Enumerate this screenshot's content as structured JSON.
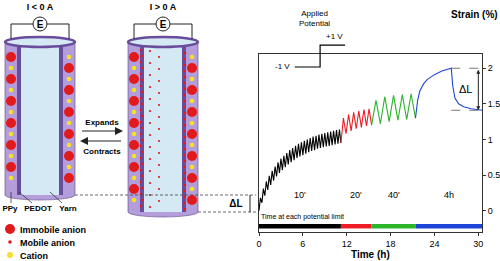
{
  "chart_data": {
    "type": "line",
    "x_label": "Time (h)",
    "y_label": "Strain (%)",
    "xlim": [
      0,
      30.5
    ],
    "xticks": [
      0,
      6,
      12,
      18,
      24,
      30
    ],
    "ylim": [
      -0.3,
      2.2
    ],
    "yticks": [
      0,
      0.5,
      1,
      1.5,
      2
    ],
    "grid": false,
    "series": [
      {
        "name": "10'",
        "color": "#000000",
        "x": [
          0,
          0.2,
          0.4,
          0.6,
          0.8,
          1,
          1.2,
          1.4,
          1.6,
          1.8,
          2,
          2.2,
          2.4,
          2.6,
          2.8,
          3,
          3.2,
          3.4,
          3.6,
          3.8,
          4,
          4.2,
          4.4,
          4.6,
          4.8,
          5,
          5.2,
          5.4,
          5.6,
          5.8,
          6,
          6.2,
          6.4,
          6.6,
          6.8,
          7,
          7.2,
          7.4,
          7.6,
          7.8,
          8,
          8.2,
          8.4,
          8.6,
          8.8,
          9,
          9.2,
          9.4,
          9.6,
          9.8,
          10,
          10.2,
          10.4,
          10.6,
          10.8,
          11,
          11.2
        ],
        "values": [
          0,
          0.18,
          0.11,
          0.31,
          0.21,
          0.41,
          0.29,
          0.49,
          0.36,
          0.56,
          0.42,
          0.62,
          0.48,
          0.68,
          0.53,
          0.73,
          0.57,
          0.77,
          0.61,
          0.81,
          0.65,
          0.85,
          0.68,
          0.88,
          0.71,
          0.91,
          0.74,
          0.94,
          0.76,
          0.96,
          0.78,
          0.98,
          0.8,
          1.0,
          0.82,
          1.02,
          0.84,
          1.04,
          0.85,
          1.05,
          0.87,
          1.07,
          0.88,
          1.08,
          0.89,
          1.09,
          0.9,
          1.1,
          0.91,
          1.11,
          0.92,
          1.12,
          0.93,
          1.13,
          0.94,
          1.14,
          0.95
        ]
      },
      {
        "name": "20'",
        "color": "#ee1c24",
        "x": [
          11.2,
          11.55,
          11.9,
          12.25,
          12.6,
          12.95,
          13.3,
          13.65,
          14.0,
          14.35,
          14.7,
          15.05,
          15.4
        ],
        "values": [
          0.95,
          1.3,
          1.08,
          1.35,
          1.12,
          1.38,
          1.15,
          1.4,
          1.17,
          1.42,
          1.19,
          1.43,
          1.2
        ]
      },
      {
        "name": "40'",
        "color": "#2bb52b",
        "x": [
          15.4,
          16.0,
          16.6,
          17.2,
          17.8,
          18.4,
          19.0,
          19.6,
          20.2,
          20.8,
          21.4
        ],
        "values": [
          1.2,
          1.55,
          1.22,
          1.6,
          1.25,
          1.62,
          1.27,
          1.63,
          1.28,
          1.64,
          1.3
        ]
      },
      {
        "name": "4h",
        "color": "#1f45d8",
        "x": [
          21.4,
          21.7,
          22.0,
          22.5,
          23.0,
          24.0,
          25.0,
          26.0,
          26.3,
          26.5,
          26.8,
          27.3,
          28.0,
          29.0,
          30.0,
          30.5
        ],
        "values": [
          1.3,
          1.55,
          1.68,
          1.78,
          1.84,
          1.91,
          1.96,
          1.99,
          2.0,
          1.75,
          1.58,
          1.5,
          1.46,
          1.43,
          1.42,
          1.41
        ]
      }
    ],
    "annotations": {
      "time_bar": "Time at each potential limit",
      "delta": "ΔL"
    },
    "inset": {
      "title": "Applied Potential",
      "low": "-1 V",
      "high": "+1 V"
    }
  },
  "diagram": {
    "states": [
      {
        "label": "I < 0 A",
        "source": "E"
      },
      {
        "label": "I > 0 A",
        "source": "E"
      }
    ],
    "arrows": {
      "forward": "Expands",
      "back": "Contracts"
    },
    "layers": [
      {
        "name": "PPy",
        "color": "#b39ddb"
      },
      {
        "name": "PEDOT",
        "color": "#6a4c9c"
      },
      {
        "name": "Yarn",
        "color": "#d4e9f4"
      }
    ],
    "length_change": "ΔL",
    "legend": [
      {
        "label": "Immobile anion",
        "color": "#e31a1c"
      },
      {
        "label": "Mobile anion",
        "color": "#e31a1c"
      },
      {
        "label": "Cation",
        "color": "#f5e12a"
      }
    ]
  }
}
